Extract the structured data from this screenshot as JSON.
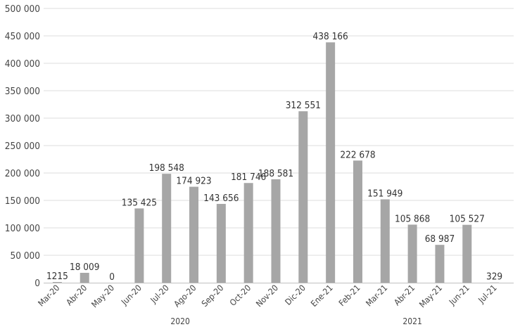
{
  "chart_data": {
    "type": "bar",
    "title": "",
    "xlabel": "",
    "ylabel": "",
    "ylim": [
      0,
      500000
    ],
    "y_ticks": [
      0,
      50000,
      100000,
      150000,
      200000,
      250000,
      300000,
      350000,
      400000,
      450000,
      500000
    ],
    "y_tick_labels": [
      "0",
      "50 000",
      "100 000",
      "150 000",
      "200 000",
      "250 000",
      "300 000",
      "350 000",
      "400 000",
      "450 000",
      "500 000"
    ],
    "grid": true,
    "legend": "none",
    "bar_color": "#a6a6a6",
    "categories": [
      "Mar-20",
      "Abr-20",
      "May-20",
      "Jun-20",
      "Jul-20",
      "Ago-20",
      "Sep-20",
      "Oct-20",
      "Nov-20",
      "Dic-20",
      "Ene-21",
      "Feb-21",
      "Mar-21",
      "Abr-21",
      "May-21",
      "Jun-21",
      "Jul-21"
    ],
    "values": [
      1215,
      18009,
      0,
      135425,
      198548,
      174923,
      143656,
      181746,
      188581,
      312551,
      438166,
      222678,
      151949,
      105868,
      68987,
      105527,
      329
    ],
    "data_labels": [
      "1215",
      "18 009",
      "0",
      "135 425",
      "198 548",
      "174 923",
      "143 656",
      "181 746",
      "188 581",
      "312 551",
      "438 166",
      "222 678",
      "151 949",
      "105 868",
      "68 987",
      "105 527",
      "329"
    ],
    "year_groups": [
      {
        "label": "2020",
        "start": 0,
        "end": 9
      },
      {
        "label": "2021",
        "start": 10,
        "end": 16
      }
    ]
  }
}
